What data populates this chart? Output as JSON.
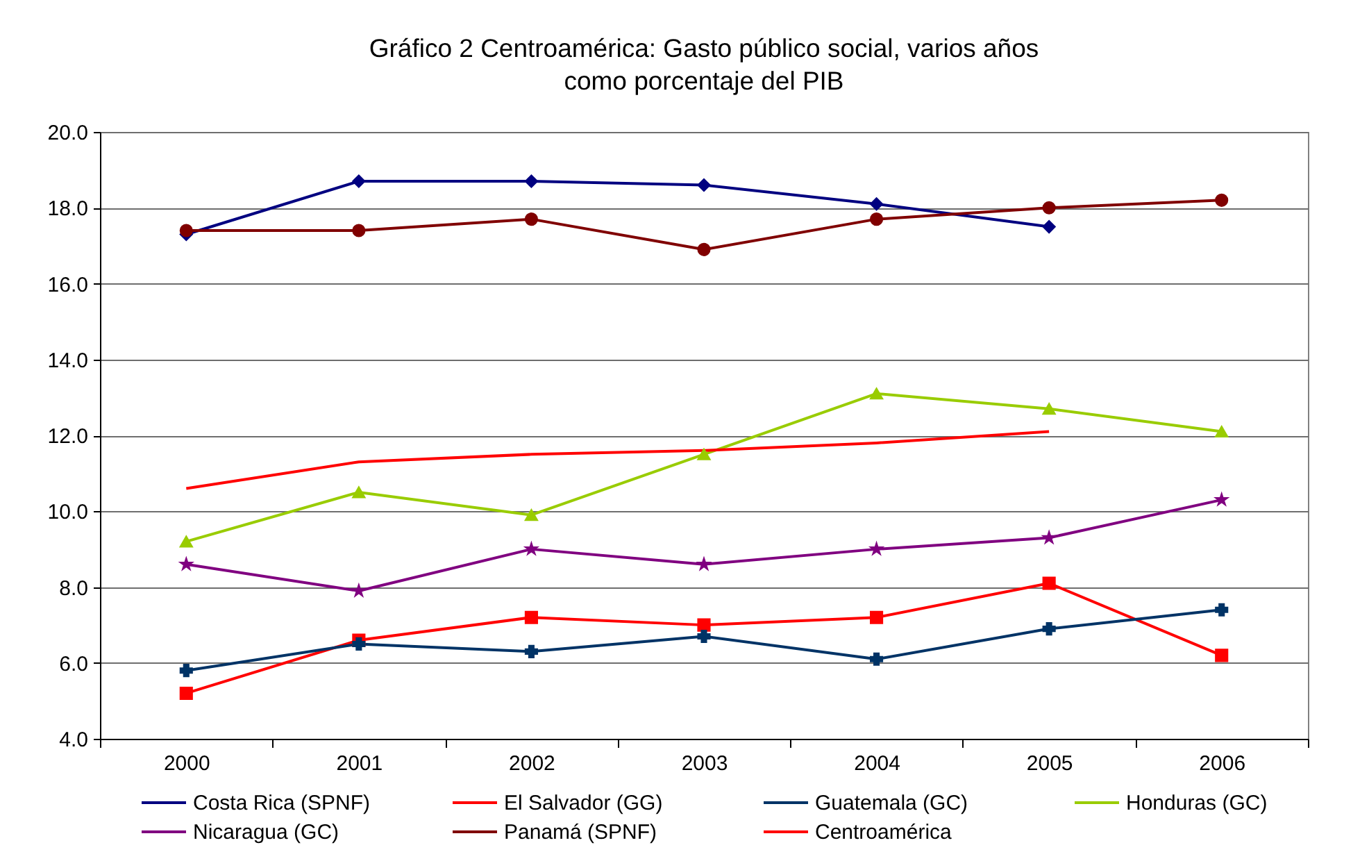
{
  "chart_data": {
    "type": "line",
    "title": "Gráfico 2 Centroamérica: Gasto público social, varios años",
    "subtitle": "como porcentaje del PIB",
    "categories": [
      "2000",
      "2001",
      "2002",
      "2003",
      "2004",
      "2005",
      "2006"
    ],
    "ylim": [
      4,
      20
    ],
    "yticks": [
      {
        "value": 4,
        "label": "4.0"
      },
      {
        "value": 6,
        "label": "6.0"
      },
      {
        "value": 8,
        "label": "8.0"
      },
      {
        "value": 10,
        "label": "10.0"
      },
      {
        "value": 12,
        "label": "12.0"
      },
      {
        "value": 14,
        "label": "14.0"
      },
      {
        "value": 16,
        "label": "16.0"
      },
      {
        "value": 18,
        "label": "18.0"
      },
      {
        "value": 20,
        "label": "20.0"
      }
    ],
    "grid": "y",
    "legend": "bottom",
    "series": [
      {
        "name": "Costa Rica (SPNF)",
        "color": "#000080",
        "marker": "diamond",
        "values": [
          17.3,
          18.7,
          18.7,
          18.6,
          18.1,
          17.5,
          null
        ]
      },
      {
        "name": "El Salvador (GG)",
        "color": "#ff0000",
        "marker": "square",
        "values": [
          5.2,
          6.6,
          7.2,
          7.0,
          7.2,
          8.1,
          6.2
        ]
      },
      {
        "name": "Guatemala (GC)",
        "color": "#003366",
        "marker": "cross",
        "values": [
          5.8,
          6.5,
          6.3,
          6.7,
          6.1,
          6.9,
          7.4
        ]
      },
      {
        "name": "Honduras (GC)",
        "color": "#99cc00",
        "marker": "triangle",
        "values": [
          9.2,
          10.5,
          9.9,
          11.5,
          13.1,
          12.7,
          12.1
        ]
      },
      {
        "name": "Nicaragua (GC)",
        "color": "#800080",
        "marker": "star",
        "values": [
          8.6,
          7.9,
          9.0,
          8.6,
          9.0,
          9.3,
          10.3
        ]
      },
      {
        "name": "Panamá (SPNF)",
        "color": "#800000",
        "marker": "circle",
        "values": [
          17.4,
          17.4,
          17.7,
          16.9,
          17.7,
          18.0,
          18.2
        ]
      },
      {
        "name": "Centroamérica",
        "color": "#ff0000",
        "marker": "none",
        "values": [
          10.6,
          11.3,
          11.5,
          11.6,
          11.8,
          12.1,
          null
        ]
      }
    ]
  }
}
